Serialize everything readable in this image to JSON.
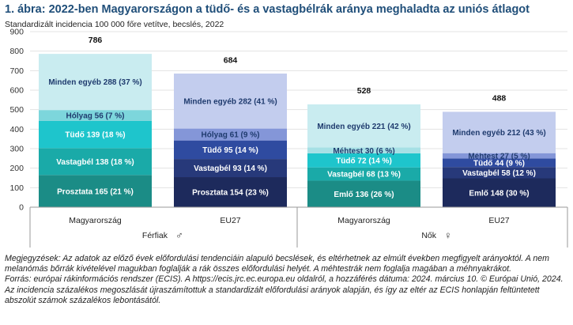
{
  "title": "1. ábra: 2022-ben Magyarországon a tüdő- és a vastagbélrák aránya meghaladta az uniós átlagot",
  "subtitle": "Standardizált incidencia 100 000 főre vetítve, becslés, 2022",
  "notes": {
    "line1": "Megjegyzések: Az adatok az előző évek előfordulási tendenciáin alapuló becslések, és eltérhetnek az elmúlt években megfigyelt arányoktól. A nem melanómás bőrrák kivételével magukban foglalják a rák összes előfordulási helyét. A méhtestrák nem foglalja magában a méhnyakrákot.",
    "line2": "Forrás: európai rákinformációs rendszer (ECIS). A https://ecis.jrc.ec.europa.eu oldalról, a hozzáférés dátuma: 2024. március 10. © Európai Unió, 2024. Az incidencia százalékos megoszlását újraszámítottuk a standardizált előfordulási arányok alapján, és így az eltér az ECIS honlapján feltüntetett abszolút számok százalékos lebontásától."
  },
  "colors": {
    "axis": "#9a9a9a",
    "grid": "#e3e3e3",
    "men_hu": [
      "#1b8c86",
      "#1aaaa8",
      "#1ec5cc",
      "#7dd6dc",
      "#c9ecf0"
    ],
    "men_eu": [
      "#1d2a5c",
      "#27397a",
      "#2f4ba0",
      "#8496d8",
      "#c3cdee"
    ],
    "women_hu": [
      "#1b8c86",
      "#1aaaa8",
      "#1ec5cc",
      "#a6e0e5",
      "#c9ecf0"
    ],
    "women_eu": [
      "#1d2a5c",
      "#27397a",
      "#2f4ba0",
      "#8496d8",
      "#c3cdee"
    ]
  },
  "chart_data": {
    "type": "bar",
    "stacked": true,
    "ylim": [
      0,
      900
    ],
    "yticks": [
      0,
      100,
      200,
      300,
      400,
      500,
      600,
      700,
      800,
      900
    ],
    "grid": true,
    "groups": [
      {
        "label": "Férfiak",
        "symbol": "♂",
        "bars": [
          {
            "category": "Magyarország",
            "total": 786,
            "segments": [
              {
                "label": "Prosztata 165 (21 %)",
                "value": 165
              },
              {
                "label": "Vastagbél 138 (18 %)",
                "value": 138
              },
              {
                "label": "Tüdő 139 (18 %)",
                "value": 139
              },
              {
                "label": "Hólyag 56 (7 %)",
                "value": 56
              },
              {
                "label": "Minden egyéb 288 (37 %)",
                "value": 288
              }
            ]
          },
          {
            "category": "EU27",
            "total": 684,
            "segments": [
              {
                "label": "Prosztata 154 (23 %)",
                "value": 154
              },
              {
                "label": "Vastagbél 93 (14 %)",
                "value": 93
              },
              {
                "label": "Tüdő 95 (14 %)",
                "value": 95
              },
              {
                "label": "Hólyag 61 (9 %)",
                "value": 61
              },
              {
                "label": "Minden egyéb 282 (41 %)",
                "value": 282
              }
            ]
          }
        ]
      },
      {
        "label": "Nők",
        "symbol": "♀",
        "bars": [
          {
            "category": "Magyarország",
            "total": 528,
            "segments": [
              {
                "label": "Emlő 136 (26 %)",
                "value": 136
              },
              {
                "label": "Vastagbél 68 (13 %)",
                "value": 68
              },
              {
                "label": "Tüdő 72 (14 %)",
                "value": 72
              },
              {
                "label": "Méhtest 30 (6 %)",
                "value": 30
              },
              {
                "label": "Minden egyéb 221 (42 %)",
                "value": 221
              }
            ]
          },
          {
            "category": "EU27",
            "total": 488,
            "segments": [
              {
                "label": "Emlő 148 (30 %)",
                "value": 148
              },
              {
                "label": "Vastagbél 58 (12 %)",
                "value": 58
              },
              {
                "label": "Tüdő 44 (9 %)",
                "value": 44
              },
              {
                "label": "Méhtest 27 (5 %)",
                "value": 27
              },
              {
                "label": "Minden egyéb 212 (43 %)",
                "value": 212
              }
            ]
          }
        ]
      }
    ]
  }
}
